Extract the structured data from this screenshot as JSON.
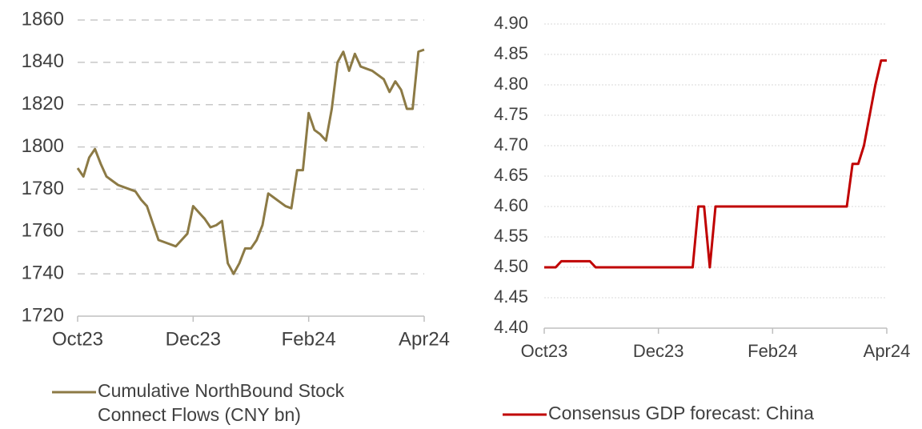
{
  "chart_data": [
    {
      "type": "line",
      "xlim": [
        0,
        60
      ],
      "xticks": [
        {
          "value": 0,
          "label": "Oct23"
        },
        {
          "value": 20,
          "label": "Dec23"
        },
        {
          "value": 40,
          "label": "Feb24"
        },
        {
          "value": 60,
          "label": "Apr24"
        }
      ],
      "ylim": [
        1720,
        1860
      ],
      "yticks": [
        1720,
        1740,
        1760,
        1780,
        1800,
        1820,
        1840,
        1860
      ],
      "grid": true,
      "series": [
        {
          "name": "Cumulative NorthBound Stock Connect Flows (CNY bn)",
          "color": "#8c7a45",
          "values": [
            1790,
            1786,
            1795,
            1799,
            1792,
            1786,
            1784,
            1782,
            1781,
            1780,
            1779,
            1775,
            1772,
            1764,
            1756,
            1755,
            1754,
            1753,
            1756,
            1759,
            1772,
            1769,
            1766,
            1762,
            1763,
            1765,
            1745,
            1740,
            1745,
            1752,
            1752,
            1756,
            1763,
            1778,
            1776,
            1774,
            1772,
            1771,
            1789,
            1789,
            1816,
            1808,
            1806,
            1803,
            1818,
            1840,
            1845,
            1836,
            1844,
            1838,
            1837,
            1836,
            1834,
            1832,
            1826,
            1831,
            1827,
            1818,
            1818,
            1845,
            1846
          ]
        }
      ]
    },
    {
      "type": "line",
      "xlim": [
        0,
        60
      ],
      "xticks": [
        {
          "value": 0,
          "label": "Oct23"
        },
        {
          "value": 20,
          "label": "Dec23"
        },
        {
          "value": 40,
          "label": "Feb24"
        },
        {
          "value": 60,
          "label": "Apr24"
        }
      ],
      "ylim": [
        4.4,
        4.9
      ],
      "yticks": [
        {
          "value": 4.4,
          "label": "4.40"
        },
        {
          "value": 4.45,
          "label": "4.45"
        },
        {
          "value": 4.5,
          "label": "4.50"
        },
        {
          "value": 4.55,
          "label": "4.55"
        },
        {
          "value": 4.6,
          "label": "4.60"
        },
        {
          "value": 4.65,
          "label": "4.65"
        },
        {
          "value": 4.7,
          "label": "4.70"
        },
        {
          "value": 4.75,
          "label": "4.75"
        },
        {
          "value": 4.8,
          "label": "4.80"
        },
        {
          "value": 4.85,
          "label": "4.85"
        },
        {
          "value": 4.9,
          "label": "4.90"
        }
      ],
      "grid": true,
      "series": [
        {
          "name": "Consensus GDP forecast: China",
          "color": "#c00000",
          "values": [
            4.5,
            4.5,
            4.5,
            4.51,
            4.51,
            4.51,
            4.51,
            4.51,
            4.51,
            4.5,
            4.5,
            4.5,
            4.5,
            4.5,
            4.5,
            4.5,
            4.5,
            4.5,
            4.5,
            4.5,
            4.5,
            4.5,
            4.5,
            4.5,
            4.5,
            4.5,
            4.5,
            4.6,
            4.6,
            4.5,
            4.6,
            4.6,
            4.6,
            4.6,
            4.6,
            4.6,
            4.6,
            4.6,
            4.6,
            4.6,
            4.6,
            4.6,
            4.6,
            4.6,
            4.6,
            4.6,
            4.6,
            4.6,
            4.6,
            4.6,
            4.6,
            4.6,
            4.6,
            4.6,
            4.67,
            4.67,
            4.7,
            4.75,
            4.8,
            4.84,
            4.84
          ]
        }
      ]
    }
  ]
}
